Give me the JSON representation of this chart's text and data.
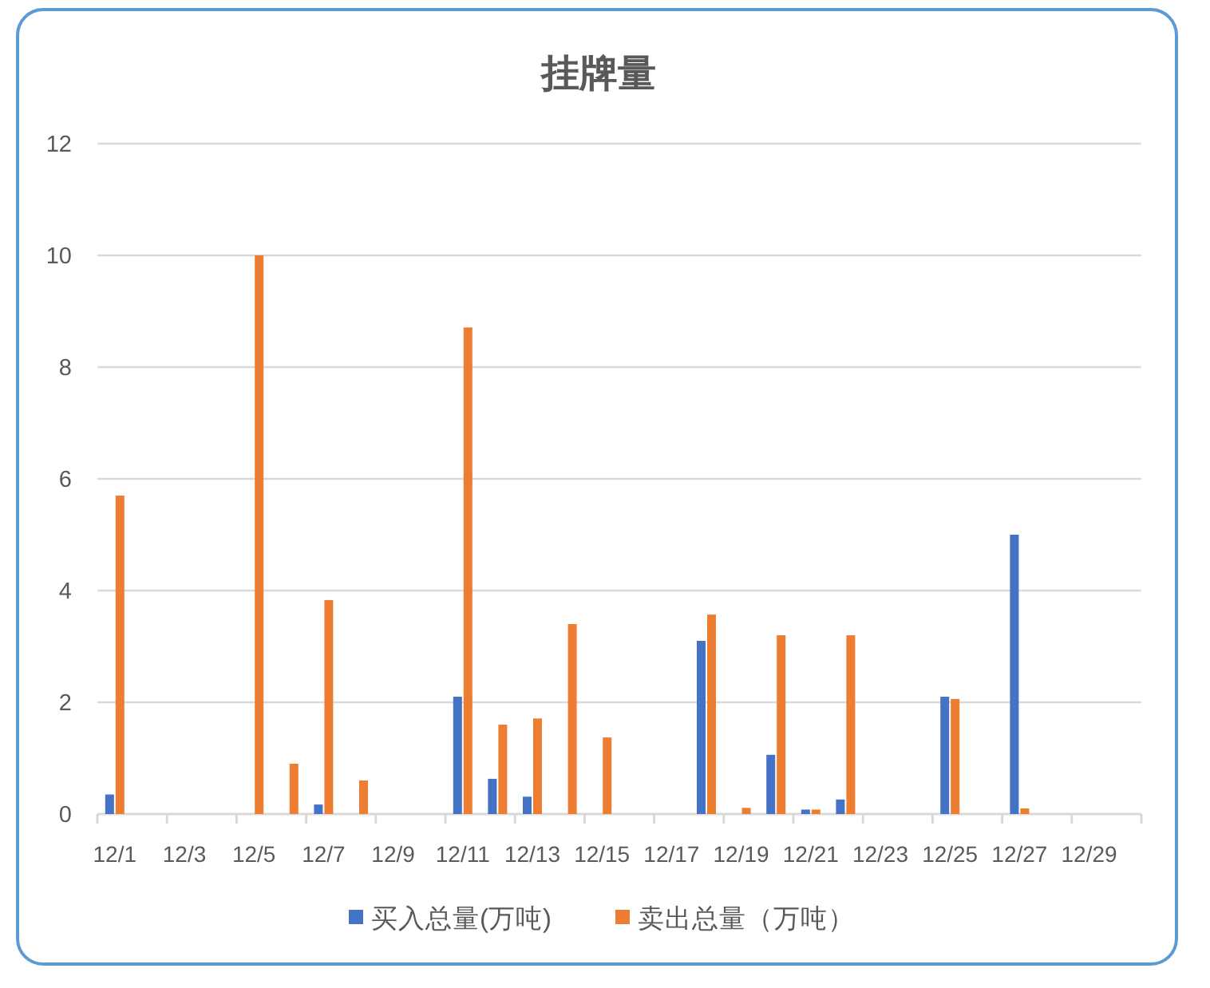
{
  "chart_data": {
    "type": "bar",
    "title": "挂牌量",
    "categories": [
      "12/1",
      null,
      "12/3",
      null,
      "12/5",
      null,
      "12/7",
      null,
      "12/9",
      null,
      "12/11",
      null,
      "12/13",
      null,
      "12/15",
      null,
      "12/17",
      null,
      "12/19",
      null,
      "12/21",
      null,
      "12/23",
      null,
      "12/25",
      null,
      "12/27",
      null,
      "12/29",
      null
    ],
    "series": [
      {
        "name": "买入总量(万吨)",
        "color": "#4472c4",
        "values": [
          0.35,
          null,
          null,
          null,
          null,
          null,
          0.17,
          null,
          null,
          null,
          2.1,
          0.63,
          0.31,
          null,
          null,
          null,
          null,
          3.1,
          null,
          1.06,
          0.08,
          0.26,
          null,
          null,
          2.1,
          null,
          5.0,
          null,
          null,
          null
        ]
      },
      {
        "name": "卖出总量（万吨）",
        "color": "#ed7d31",
        "values": [
          5.7,
          null,
          null,
          null,
          10.0,
          0.9,
          3.83,
          0.6,
          null,
          null,
          8.71,
          1.6,
          1.71,
          3.4,
          1.37,
          null,
          null,
          3.57,
          0.11,
          3.2,
          0.08,
          3.2,
          null,
          null,
          2.06,
          null,
          0.1,
          null,
          null,
          null
        ]
      }
    ],
    "ylim": [
      0,
      12
    ],
    "yticks": [
      0,
      2,
      4,
      6,
      8,
      10,
      12
    ],
    "grid": "y",
    "legend": "bottom"
  }
}
